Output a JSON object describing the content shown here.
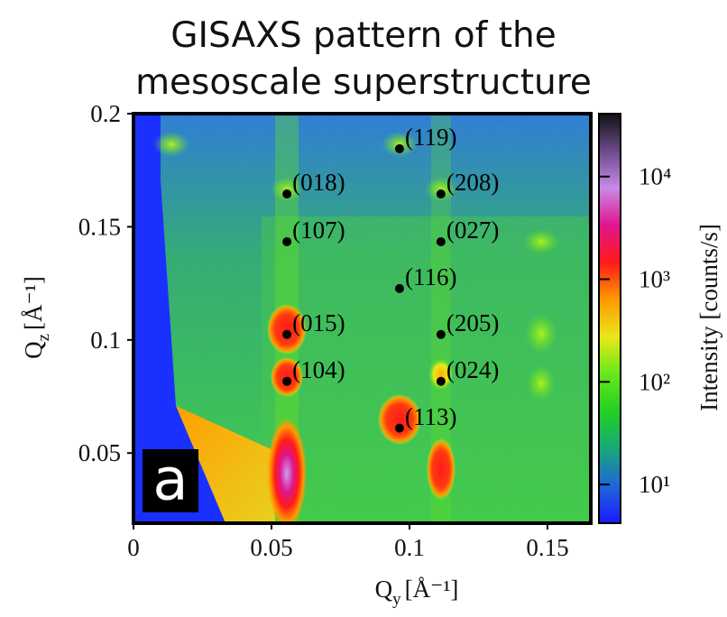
{
  "chart_data": {
    "type": "scatter",
    "title": [
      "GISAXS pattern of the",
      "mesoscale superstructure"
    ],
    "x_label": {
      "symbol": "Q",
      "subscript": "y",
      "unit": "[Å⁻¹]"
    },
    "y_label": {
      "symbol": "Q",
      "subscript": "z",
      "unit": "[Å⁻¹]"
    },
    "panel_label": "a",
    "xlim": [
      0,
      0.1657
    ],
    "ylim": [
      0.019,
      0.2
    ],
    "xticks": [
      0,
      0.05,
      0.1,
      0.15
    ],
    "yticks": [
      0.05,
      0.1,
      0.15,
      0.2
    ],
    "x": [
      0.0964,
      0.0556,
      0.1114,
      0.0556,
      0.1114,
      0.0964,
      0.0556,
      0.1114,
      0.0556,
      0.1114,
      0.0964
    ],
    "values": [
      0.1845,
      0.1645,
      0.1645,
      0.1434,
      0.1434,
      0.1227,
      0.1024,
      0.1024,
      0.0817,
      0.0817,
      0.061
    ],
    "point_labels": [
      "(119)",
      "(018)",
      "(208)",
      "(107)",
      "(027)",
      "(116)",
      "(015)",
      "(205)",
      "(104)",
      "(024)",
      "(113)"
    ],
    "color": "#000000",
    "colorbar": {
      "label": "Intensity [counts/s]",
      "log_scale": true,
      "lim": [
        4.2,
        41000
      ],
      "ticks": [
        {
          "value": 10,
          "label": "10¹"
        },
        {
          "value": 100,
          "label": "10²"
        },
        {
          "value": 1000,
          "label": "10³"
        },
        {
          "value": 10000,
          "label": "10⁴"
        }
      ],
      "colors": [
        "#1a1aff",
        "#1f66d8",
        "#19a87a",
        "#22d022",
        "#66e81a",
        "#e8e81a",
        "#ff9a00",
        "#ff1a1a",
        "#e0148c",
        "#c88ae8",
        "#6a4a8a",
        "#111111"
      ]
    }
  }
}
